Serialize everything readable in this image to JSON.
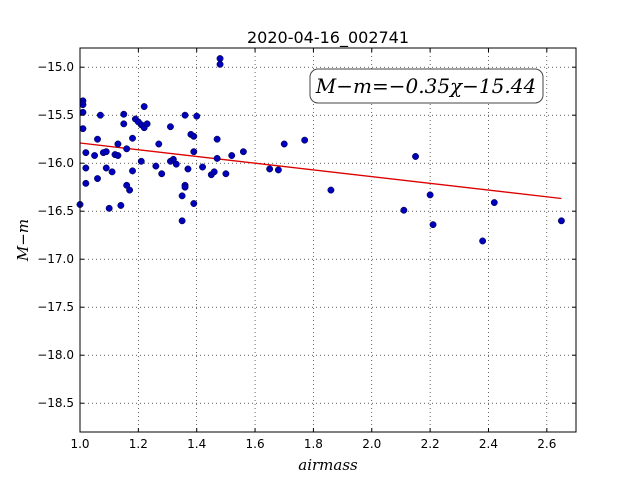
{
  "chart_data": {
    "type": "scatter",
    "title": "2020-04-16_002741",
    "xlabel": "airmass",
    "ylabel": "M−m",
    "xlim": [
      1.0,
      2.7
    ],
    "ylim": [
      -18.8,
      -14.8
    ],
    "y_inverted": true,
    "grid": true,
    "xticks": [
      "1.0",
      "1.2",
      "1.4",
      "1.6",
      "1.8",
      "2.0",
      "2.2",
      "2.4",
      "2.6"
    ],
    "yticks": [
      "−15.0",
      "−15.5",
      "−16.0",
      "−16.5",
      "−17.0",
      "−17.5",
      "−18.0",
      "−18.5"
    ],
    "annotation": "M−m=−0.35χ−15.44",
    "fit": {
      "slope": -0.35,
      "intercept": -15.44,
      "x_range": [
        1.0,
        2.65
      ],
      "color": "#dd0000"
    },
    "point_color": "#0000bb",
    "series": [
      {
        "points": [
          [
            1.0,
            -16.43
          ],
          [
            1.01,
            -15.35
          ],
          [
            1.01,
            -15.39
          ],
          [
            1.01,
            -15.47
          ],
          [
            1.01,
            -15.64
          ],
          [
            1.02,
            -15.89
          ],
          [
            1.02,
            -16.05
          ],
          [
            1.02,
            -16.21
          ],
          [
            1.05,
            -15.92
          ],
          [
            1.06,
            -16.16
          ],
          [
            1.06,
            -15.75
          ],
          [
            1.07,
            -15.5
          ],
          [
            1.08,
            -15.89
          ],
          [
            1.09,
            -15.88
          ],
          [
            1.09,
            -16.05
          ],
          [
            1.1,
            -16.47
          ],
          [
            1.11,
            -16.09
          ],
          [
            1.12,
            -15.91
          ],
          [
            1.13,
            -15.8
          ],
          [
            1.13,
            -15.92
          ],
          [
            1.14,
            -16.44
          ],
          [
            1.15,
            -15.49
          ],
          [
            1.15,
            -15.59
          ],
          [
            1.16,
            -15.85
          ],
          [
            1.16,
            -16.23
          ],
          [
            1.17,
            -16.28
          ],
          [
            1.18,
            -15.74
          ],
          [
            1.18,
            -16.08
          ],
          [
            1.19,
            -15.54
          ],
          [
            1.2,
            -15.57
          ],
          [
            1.21,
            -15.6
          ],
          [
            1.21,
            -15.98
          ],
          [
            1.22,
            -15.41
          ],
          [
            1.22,
            -15.63
          ],
          [
            1.23,
            -15.59
          ],
          [
            1.26,
            -16.03
          ],
          [
            1.27,
            -15.8
          ],
          [
            1.28,
            -16.11
          ],
          [
            1.31,
            -15.62
          ],
          [
            1.31,
            -15.98
          ],
          [
            1.32,
            -15.96
          ],
          [
            1.33,
            -16.01
          ],
          [
            1.35,
            -16.6
          ],
          [
            1.35,
            -16.34
          ],
          [
            1.36,
            -15.5
          ],
          [
            1.36,
            -16.23
          ],
          [
            1.36,
            -16.25
          ],
          [
            1.37,
            -16.06
          ],
          [
            1.38,
            -15.7
          ],
          [
            1.39,
            -15.72
          ],
          [
            1.39,
            -15.88
          ],
          [
            1.39,
            -16.42
          ],
          [
            1.4,
            -15.51
          ],
          [
            1.42,
            -16.04
          ],
          [
            1.45,
            -16.12
          ],
          [
            1.46,
            -16.09
          ],
          [
            1.47,
            -15.75
          ],
          [
            1.47,
            -15.95
          ],
          [
            1.48,
            -14.91
          ],
          [
            1.48,
            -14.97
          ],
          [
            1.5,
            -16.11
          ],
          [
            1.52,
            -15.92
          ],
          [
            1.56,
            -15.88
          ],
          [
            1.65,
            -16.06
          ],
          [
            1.68,
            -16.07
          ],
          [
            1.7,
            -15.8
          ],
          [
            1.77,
            -15.76
          ],
          [
            1.86,
            -16.28
          ],
          [
            2.11,
            -16.49
          ],
          [
            2.15,
            -15.93
          ],
          [
            2.2,
            -16.33
          ],
          [
            2.21,
            -16.64
          ],
          [
            2.38,
            -16.81
          ],
          [
            2.42,
            -16.41
          ],
          [
            2.65,
            -16.6
          ]
        ]
      }
    ]
  }
}
